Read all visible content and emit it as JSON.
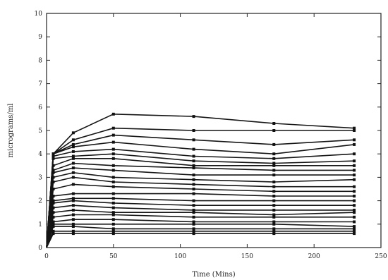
{
  "chart_data": {
    "type": "line",
    "title": "",
    "xlabel": "Time (Mins)",
    "ylabel": "micrograms/ml",
    "xlim": [
      0,
      250
    ],
    "ylim": [
      0,
      10
    ],
    "xticks": [
      0,
      50,
      100,
      150,
      200,
      250
    ],
    "yticks": [
      0,
      1,
      2,
      3,
      4,
      5,
      6,
      7,
      8,
      9,
      10
    ],
    "grid": false,
    "x": [
      0,
      5,
      20,
      50,
      110,
      170,
      230
    ],
    "series": [
      {
        "values": [
          0,
          4.0,
          4.9,
          5.7,
          5.6,
          5.3,
          5.1
        ]
      },
      {
        "values": [
          0,
          4.0,
          4.6,
          5.1,
          5.0,
          5.0,
          5.0
        ]
      },
      {
        "values": [
          0,
          4.0,
          4.4,
          4.8,
          4.6,
          4.4,
          4.6
        ]
      },
      {
        "values": [
          0,
          4.0,
          4.3,
          4.5,
          4.2,
          4.0,
          4.4
        ]
      },
      {
        "values": [
          0,
          3.9,
          4.1,
          4.2,
          3.9,
          3.8,
          4.0
        ]
      },
      {
        "values": [
          0,
          3.8,
          3.9,
          4.0,
          3.7,
          3.6,
          3.7
        ]
      },
      {
        "values": [
          0,
          3.5,
          3.8,
          3.8,
          3.5,
          3.5,
          3.5
        ]
      },
      {
        "values": [
          0,
          3.3,
          3.6,
          3.5,
          3.4,
          3.3,
          3.3
        ]
      },
      {
        "values": [
          0,
          3.2,
          3.4,
          3.3,
          3.1,
          3.1,
          3.1
        ]
      },
      {
        "values": [
          0,
          3.0,
          3.2,
          3.0,
          2.9,
          2.8,
          2.9
        ]
      },
      {
        "values": [
          0,
          2.8,
          3.0,
          2.8,
          2.7,
          2.6,
          2.6
        ]
      },
      {
        "values": [
          0,
          2.5,
          2.7,
          2.6,
          2.5,
          2.4,
          2.4
        ]
      },
      {
        "values": [
          0,
          2.2,
          2.3,
          2.3,
          2.3,
          2.2,
          2.2
        ]
      },
      {
        "values": [
          0,
          2.0,
          2.1,
          2.1,
          2.0,
          2.0,
          2.0
        ]
      },
      {
        "values": [
          0,
          1.9,
          2.0,
          1.9,
          1.8,
          1.8,
          1.8
        ]
      },
      {
        "values": [
          0,
          1.7,
          1.8,
          1.7,
          1.6,
          1.6,
          1.6
        ]
      },
      {
        "values": [
          0,
          1.5,
          1.6,
          1.5,
          1.5,
          1.4,
          1.5
        ]
      },
      {
        "values": [
          0,
          1.3,
          1.4,
          1.4,
          1.3,
          1.3,
          1.3
        ]
      },
      {
        "values": [
          0,
          1.1,
          1.2,
          1.2,
          1.1,
          1.1,
          1.1
        ]
      },
      {
        "values": [
          0,
          1.0,
          1.0,
          1.0,
          1.0,
          1.0,
          0.9
        ]
      },
      {
        "values": [
          0,
          0.9,
          0.9,
          0.8,
          0.8,
          0.8,
          0.8
        ]
      },
      {
        "values": [
          0,
          0.7,
          0.7,
          0.7,
          0.7,
          0.7,
          0.7
        ]
      },
      {
        "values": [
          0,
          0.6,
          0.6,
          0.6,
          0.6,
          0.6,
          0.6
        ]
      }
    ]
  }
}
